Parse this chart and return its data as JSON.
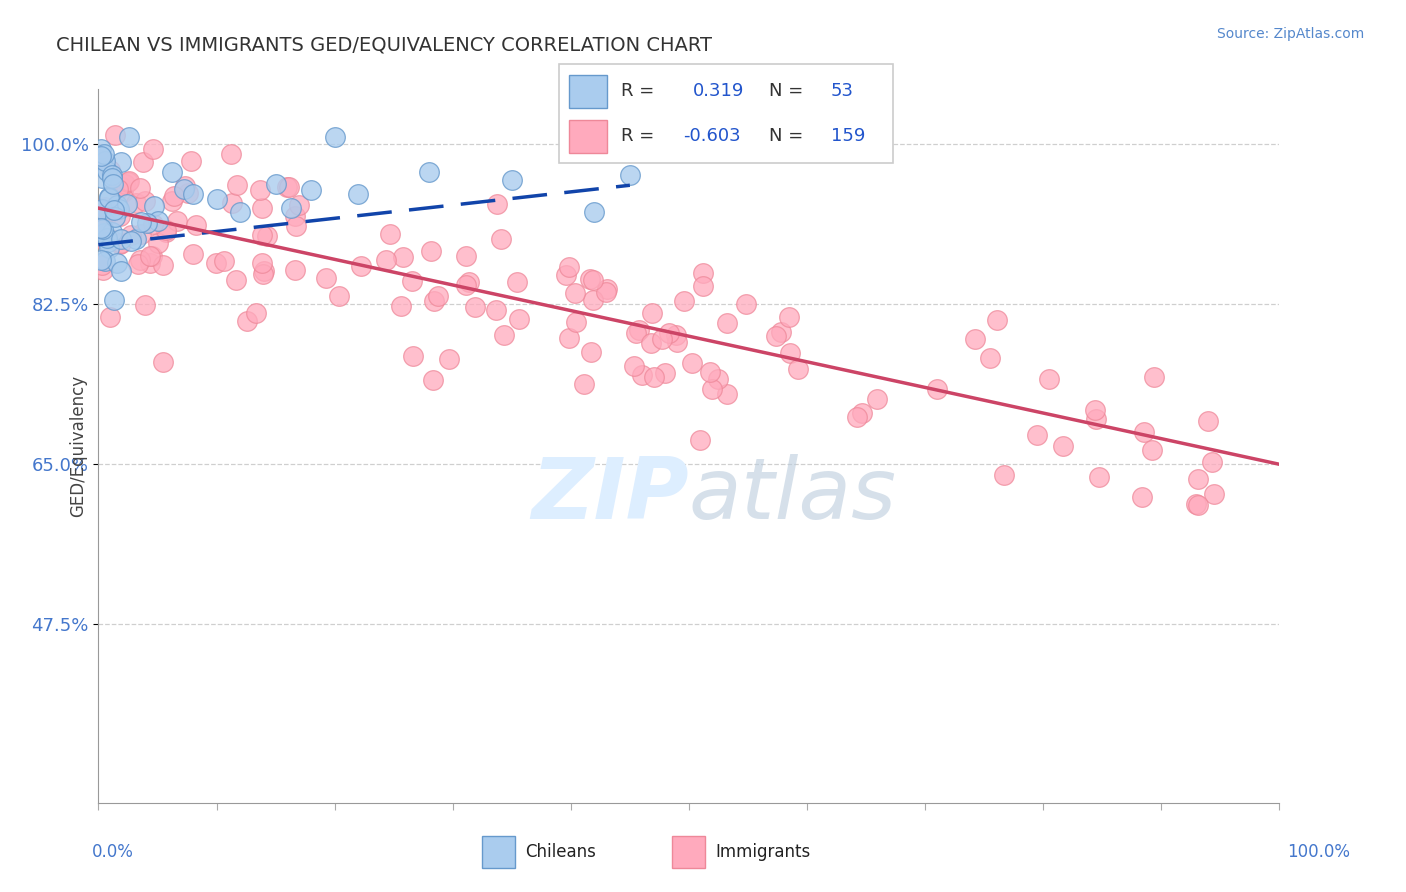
{
  "title": "CHILEAN VS IMMIGRANTS GED/EQUIVALENCY CORRELATION CHART",
  "source": "Source: ZipAtlas.com",
  "ylabel": "GED/Equivalency",
  "yticks": [
    47.5,
    65.0,
    82.5,
    100.0
  ],
  "ytick_labels": [
    "47.5%",
    "65.0%",
    "82.5%",
    "100.0%"
  ],
  "xrange": [
    0.0,
    100.0
  ],
  "yrange": [
    28.0,
    106.0
  ],
  "chilean_color": "#aaccee",
  "chilean_edge": "#6699cc",
  "immigrant_color": "#ffaabd",
  "immigrant_edge": "#ee8899",
  "blue_line_color": "#1144aa",
  "pink_line_color": "#cc4466",
  "background_color": "#ffffff",
  "grid_color": "#bbbbbb",
  "watermark_color": "#ddeeff",
  "legend_r1": "R =",
  "legend_v1": "0.319",
  "legend_n1": "N =",
  "legend_nv1": "53",
  "legend_r2": "R =",
  "legend_v2": "-0.603",
  "legend_n2": "N =",
  "legend_nv2": "159"
}
